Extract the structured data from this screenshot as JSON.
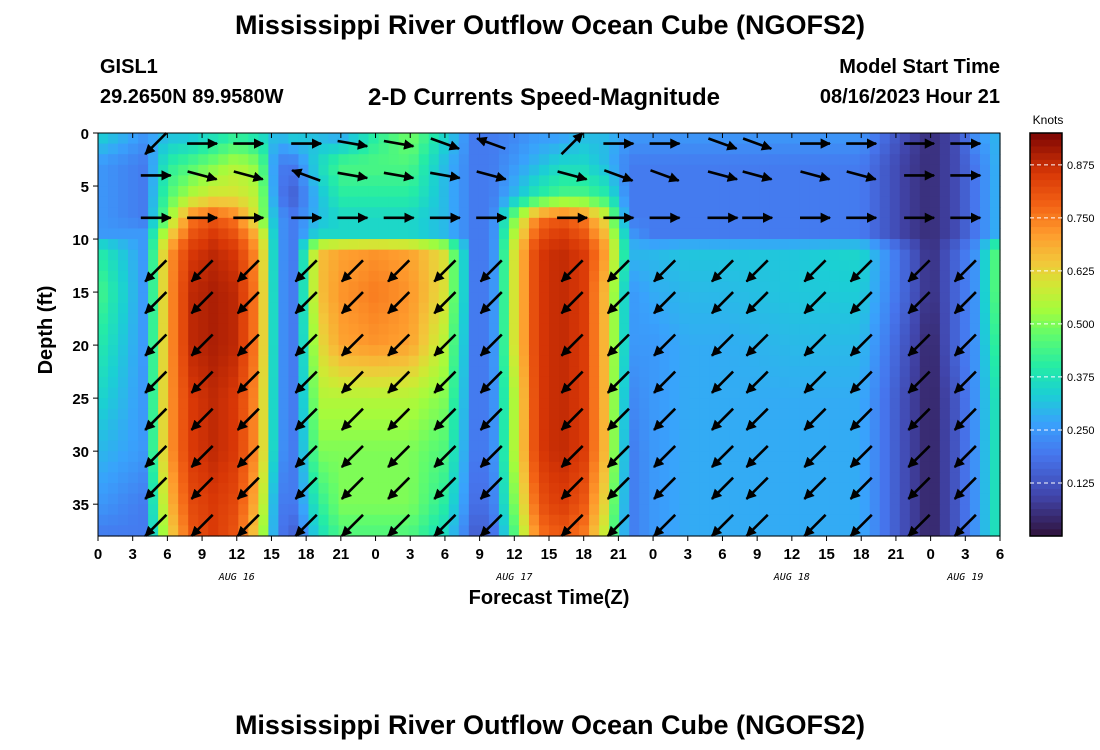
{
  "page": {
    "title_top": "Mississippi River Outflow Ocean Cube (NGOFS2)",
    "title_bottom": "Mississippi River Outflow Ocean Cube (NGOFS2)",
    "station_id": "GISL1",
    "station_coords": "29.2650N  89.9580W",
    "model_start_label": "Model Start Time",
    "model_start_value": "08/16/2023 Hour 21"
  },
  "chart_data": {
    "type": "heatmap",
    "title": "2-D Currents Speed-Magnitude",
    "xlabel": "Forecast Time(Z)",
    "ylabel": "Depth (ft)",
    "colorbar_label": "Knots",
    "colorbar_range": [
      0.0,
      0.95
    ],
    "colorbar_ticks": [
      "0.875",
      "0.750",
      "0.625",
      "0.500",
      "0.375",
      "0.250",
      "0.125"
    ],
    "colorbar_tick_values": [
      0.875,
      0.75,
      0.625,
      0.5,
      0.375,
      0.25,
      0.125
    ],
    "x_range_hours": [
      0,
      78
    ],
    "y_range_ft": [
      0,
      38
    ],
    "y_reversed": true,
    "yticks": [
      "0",
      "5",
      "10",
      "15",
      "20",
      "25",
      "30",
      "35"
    ],
    "ytick_values": [
      0,
      5,
      10,
      15,
      20,
      25,
      30,
      35
    ],
    "xticks": [
      "0",
      "3",
      "6",
      "9",
      "12",
      "15",
      "18",
      "21",
      "0",
      "3",
      "6",
      "9",
      "12",
      "15",
      "18",
      "21",
      "0",
      "3",
      "6",
      "9",
      "12",
      "15",
      "18",
      "21",
      "0",
      "3",
      "6"
    ],
    "date_labels": [
      "AUG 16",
      "AUG 17",
      "AUG 18",
      "AUG 19"
    ],
    "date_label_hours": [
      12,
      36,
      60,
      75
    ],
    "speed_times_hours": [
      0,
      4,
      6,
      8,
      10,
      12,
      14,
      15.5,
      17,
      19,
      21,
      24,
      27,
      30,
      32.5,
      34,
      36,
      38,
      40,
      42,
      44,
      46,
      48,
      51,
      54,
      60,
      66,
      70,
      72,
      74,
      76,
      78
    ],
    "speed_depths_ft": [
      0,
      3,
      6,
      8,
      9.5,
      11,
      15,
      20,
      25,
      30,
      35,
      38
    ],
    "speed_knots": [
      [
        0.35,
        0.25,
        0.3,
        0.3,
        0.35,
        0.4,
        0.35,
        0.3,
        0.35,
        0.3,
        0.25,
        0.4,
        0.5,
        0.35,
        0.2,
        0.2,
        0.22,
        0.25,
        0.25,
        0.3,
        0.3,
        0.25,
        0.25,
        0.25,
        0.25,
        0.25,
        0.25,
        0.1,
        0.05,
        0.1,
        0.25,
        0.3
      ],
      [
        0.25,
        0.2,
        0.4,
        0.45,
        0.5,
        0.55,
        0.5,
        0.2,
        0.2,
        0.35,
        0.45,
        0.45,
        0.45,
        0.3,
        0.2,
        0.2,
        0.25,
        0.3,
        0.35,
        0.35,
        0.3,
        0.2,
        0.2,
        0.2,
        0.2,
        0.2,
        0.2,
        0.08,
        0.05,
        0.1,
        0.2,
        0.3
      ],
      [
        0.25,
        0.2,
        0.45,
        0.55,
        0.6,
        0.6,
        0.55,
        0.2,
        0.15,
        0.3,
        0.4,
        0.4,
        0.4,
        0.3,
        0.2,
        0.2,
        0.3,
        0.4,
        0.45,
        0.45,
        0.4,
        0.2,
        0.2,
        0.2,
        0.2,
        0.2,
        0.2,
        0.08,
        0.05,
        0.1,
        0.2,
        0.3
      ],
      [
        0.25,
        0.2,
        0.5,
        0.75,
        0.8,
        0.75,
        0.55,
        0.25,
        0.2,
        0.3,
        0.35,
        0.35,
        0.35,
        0.3,
        0.2,
        0.2,
        0.5,
        0.75,
        0.8,
        0.75,
        0.6,
        0.2,
        0.2,
        0.2,
        0.2,
        0.2,
        0.2,
        0.08,
        0.05,
        0.1,
        0.2,
        0.3
      ],
      [
        0.25,
        0.25,
        0.6,
        0.8,
        0.85,
        0.8,
        0.65,
        0.25,
        0.2,
        0.35,
        0.35,
        0.35,
        0.35,
        0.3,
        0.2,
        0.2,
        0.55,
        0.8,
        0.85,
        0.8,
        0.65,
        0.25,
        0.2,
        0.2,
        0.2,
        0.2,
        0.2,
        0.08,
        0.05,
        0.1,
        0.2,
        0.3
      ],
      [
        0.4,
        0.25,
        0.7,
        0.85,
        0.88,
        0.85,
        0.7,
        0.25,
        0.2,
        0.65,
        0.7,
        0.72,
        0.7,
        0.6,
        0.2,
        0.2,
        0.6,
        0.85,
        0.88,
        0.85,
        0.7,
        0.3,
        0.3,
        0.32,
        0.32,
        0.32,
        0.35,
        0.15,
        0.05,
        0.15,
        0.25,
        0.5
      ],
      [
        0.45,
        0.25,
        0.7,
        0.88,
        0.9,
        0.88,
        0.72,
        0.25,
        0.2,
        0.65,
        0.72,
        0.75,
        0.72,
        0.6,
        0.2,
        0.2,
        0.6,
        0.85,
        0.88,
        0.85,
        0.65,
        0.25,
        0.28,
        0.3,
        0.3,
        0.32,
        0.33,
        0.15,
        0.05,
        0.15,
        0.25,
        0.5
      ],
      [
        0.4,
        0.25,
        0.7,
        0.88,
        0.9,
        0.88,
        0.72,
        0.25,
        0.2,
        0.6,
        0.7,
        0.72,
        0.7,
        0.55,
        0.2,
        0.2,
        0.6,
        0.85,
        0.88,
        0.85,
        0.65,
        0.25,
        0.25,
        0.28,
        0.28,
        0.3,
        0.3,
        0.12,
        0.03,
        0.15,
        0.25,
        0.45
      ],
      [
        0.35,
        0.25,
        0.7,
        0.85,
        0.88,
        0.85,
        0.7,
        0.25,
        0.2,
        0.55,
        0.55,
        0.55,
        0.55,
        0.5,
        0.2,
        0.2,
        0.55,
        0.85,
        0.88,
        0.85,
        0.65,
        0.22,
        0.25,
        0.28,
        0.28,
        0.28,
        0.28,
        0.1,
        0.03,
        0.12,
        0.25,
        0.4
      ],
      [
        0.3,
        0.25,
        0.7,
        0.85,
        0.88,
        0.85,
        0.7,
        0.25,
        0.2,
        0.5,
        0.5,
        0.5,
        0.5,
        0.45,
        0.2,
        0.2,
        0.55,
        0.85,
        0.88,
        0.85,
        0.65,
        0.2,
        0.25,
        0.28,
        0.28,
        0.28,
        0.28,
        0.1,
        0.03,
        0.12,
        0.25,
        0.4
      ],
      [
        0.25,
        0.2,
        0.65,
        0.82,
        0.85,
        0.82,
        0.65,
        0.2,
        0.2,
        0.4,
        0.5,
        0.5,
        0.5,
        0.4,
        0.18,
        0.18,
        0.5,
        0.8,
        0.85,
        0.8,
        0.6,
        0.2,
        0.25,
        0.28,
        0.28,
        0.28,
        0.28,
        0.1,
        0.03,
        0.12,
        0.25,
        0.4
      ],
      [
        0.2,
        0.2,
        0.6,
        0.8,
        0.85,
        0.8,
        0.6,
        0.2,
        0.15,
        0.35,
        0.45,
        0.45,
        0.45,
        0.35,
        0.15,
        0.15,
        0.45,
        0.75,
        0.8,
        0.75,
        0.55,
        0.2,
        0.25,
        0.28,
        0.28,
        0.28,
        0.28,
        0.1,
        0.03,
        0.12,
        0.25,
        0.4
      ]
    ],
    "vector_times_hours": [
      5,
      9,
      13,
      18,
      22,
      26,
      30,
      34,
      41,
      45,
      49,
      54,
      57,
      62,
      66,
      71,
      75
    ],
    "vector_depths_ft": [
      1,
      4,
      8,
      13,
      16,
      20,
      23.5,
      27,
      30.5,
      33.5,
      37
    ],
    "vector_directions_deg": [
      [
        135,
        0,
        0,
        0,
        10,
        10,
        20,
        200,
        315,
        0,
        0,
        20,
        20,
        0,
        0,
        0,
        0
      ],
      [
        0,
        15,
        15,
        200,
        10,
        10,
        10,
        15,
        15,
        20,
        20,
        15,
        15,
        15,
        15,
        0,
        0
      ],
      [
        0,
        0,
        0,
        0,
        0,
        0,
        0,
        0,
        0,
        0,
        0,
        0,
        0,
        0,
        0,
        0,
        0
      ],
      [
        135,
        135,
        135,
        135,
        135,
        135,
        135,
        135,
        135,
        135,
        135,
        135,
        135,
        135,
        135,
        135,
        135
      ],
      [
        135,
        135,
        135,
        135,
        135,
        135,
        135,
        135,
        135,
        135,
        135,
        135,
        135,
        135,
        135,
        135,
        135
      ],
      [
        135,
        135,
        135,
        135,
        135,
        135,
        135,
        135,
        135,
        135,
        135,
        135,
        135,
        135,
        135,
        135,
        135
      ],
      [
        135,
        135,
        135,
        135,
        135,
        135,
        135,
        135,
        135,
        135,
        135,
        135,
        135,
        135,
        135,
        135,
        135
      ],
      [
        135,
        135,
        135,
        135,
        135,
        135,
        135,
        135,
        135,
        135,
        135,
        135,
        135,
        135,
        135,
        135,
        135
      ],
      [
        135,
        135,
        135,
        135,
        135,
        135,
        135,
        135,
        135,
        135,
        135,
        135,
        135,
        135,
        135,
        135,
        135
      ],
      [
        135,
        135,
        135,
        135,
        135,
        135,
        135,
        135,
        135,
        135,
        135,
        135,
        135,
        135,
        135,
        135,
        135
      ],
      [
        135,
        135,
        135,
        135,
        135,
        135,
        135,
        135,
        135,
        135,
        135,
        135,
        135,
        135,
        135,
        135,
        135
      ]
    ]
  }
}
